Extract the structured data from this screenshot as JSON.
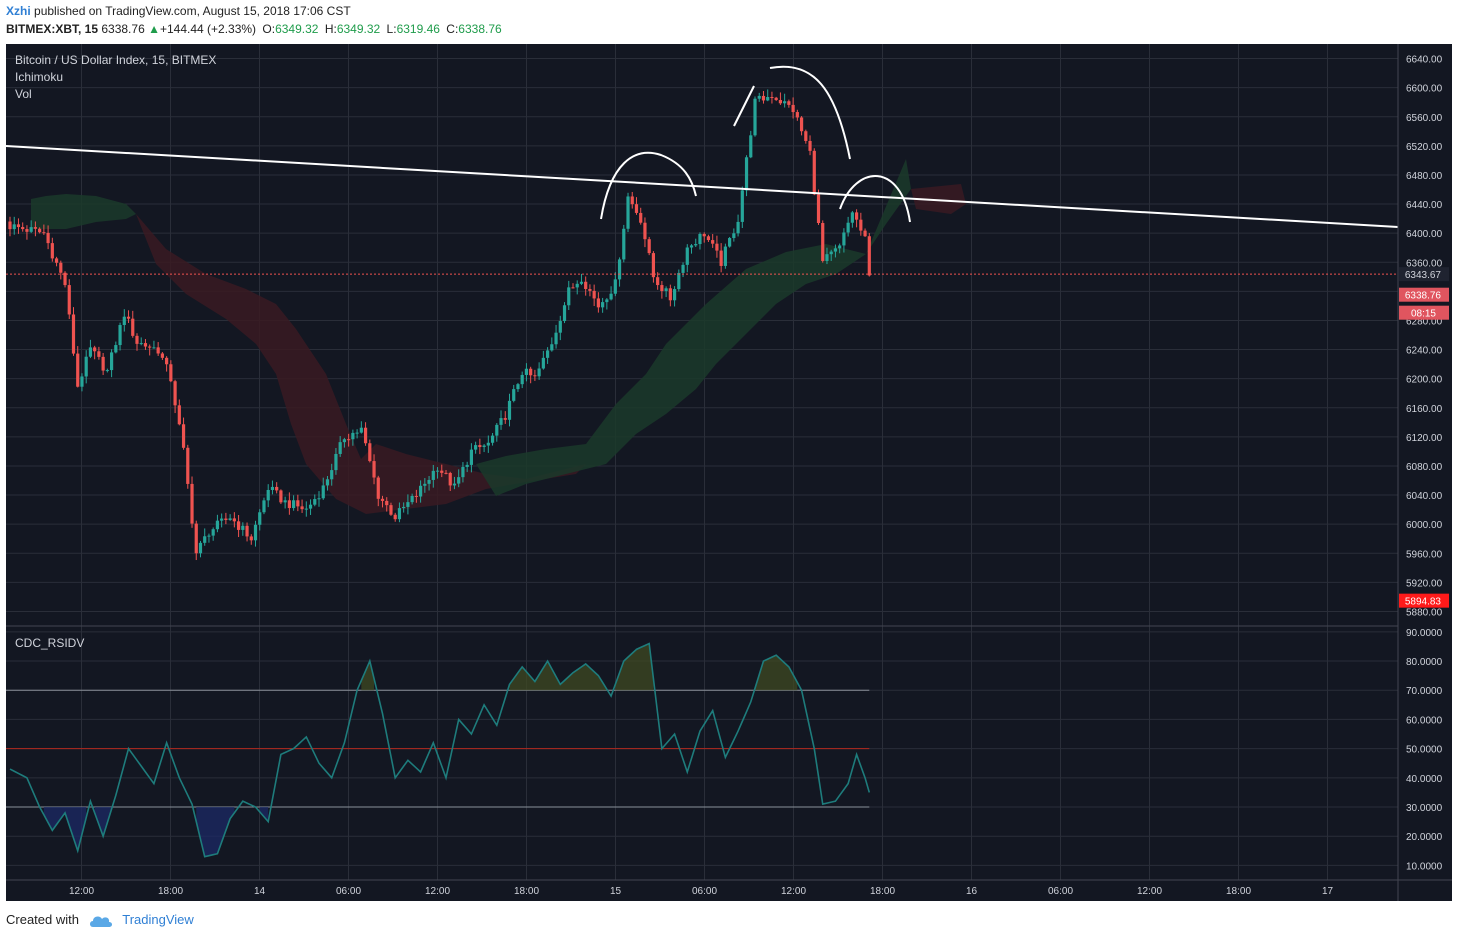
{
  "header": {
    "author": "Xzhi",
    "published_text": "published on TradingView.com, August 15, 2018 17:06 CST",
    "symbol": "BITMEX:XBT, 15",
    "last": "6338.76",
    "change": "+144.44 (+2.33%)",
    "o_label": "O:",
    "o": "6349.32",
    "h_label": "H:",
    "h": "6349.32",
    "l_label": "L:",
    "l": "6319.46",
    "c_label": "C:",
    "c": "6338.76"
  },
  "legend": {
    "title": "Bitcoin / US Dollar Index, 15, BITMEX",
    "ind1": "Ichimoku",
    "ind2": "Vol",
    "osc": "CDC_RSIDV"
  },
  "footer": {
    "created": "Created with",
    "brand": "TradingView"
  },
  "colors": {
    "background": "#131722",
    "grid": "#2a2e39",
    "up": "#26a69a",
    "down": "#ef5350",
    "trendline": "#ffffff",
    "rsi_line": "#1e7c7c",
    "mid_line": "#b2281e",
    "cloud_green": "#1b3a2a",
    "cloud_red": "#3a1a22",
    "last_price_tag": "#e0555f",
    "low_tag": "#ff1a1a"
  },
  "chart_data": [
    {
      "type": "candlestick",
      "title": "Bitcoin / US Dollar Index, 15, BITMEX",
      "ylim": [
        5860,
        6660
      ],
      "y_ticks": [
        6640,
        6600,
        6560,
        6520,
        6480,
        6440,
        6400,
        6360,
        6320,
        6280,
        6240,
        6200,
        6160,
        6120,
        6080,
        6040,
        6000,
        5960,
        5920,
        5880
      ],
      "y_tick_labels": [
        "6640.00",
        "6600.00",
        "6560.00",
        "6520.00",
        "6480.00",
        "6440.00",
        "6400.00",
        "6360.00",
        "6320.00",
        "6280.00",
        "6240.00",
        "6200.00",
        "6160.00",
        "6120.00",
        "6080.00",
        "6040.00",
        "6000.00",
        "5960.00",
        "5920.00",
        "5880.00"
      ],
      "x_tick_labels": [
        "12:00",
        "18:00",
        "14",
        "06:00",
        "12:00",
        "18:00",
        "15",
        "06:00",
        "12:00",
        "18:00",
        "16",
        "06:00",
        "12:00",
        "18:00",
        "17"
      ],
      "price_tags": [
        {
          "label": "6343.67",
          "value": 6343.67
        },
        {
          "label": "6338.76",
          "value": 6338.76
        },
        {
          "label": "08:15"
        },
        {
          "label": "5894.83",
          "value": 5894.83
        }
      ],
      "anchors": [
        [
          0,
          6410
        ],
        [
          8,
          6400
        ],
        [
          13,
          6330
        ],
        [
          16,
          6190
        ],
        [
          19,
          6240
        ],
        [
          23,
          6210
        ],
        [
          27,
          6290
        ],
        [
          30,
          6250
        ],
        [
          35,
          6240
        ],
        [
          38,
          6200
        ],
        [
          41,
          6100
        ],
        [
          44,
          5960
        ],
        [
          47,
          5990
        ],
        [
          52,
          6010
        ],
        [
          57,
          5980
        ],
        [
          61,
          6050
        ],
        [
          65,
          6030
        ],
        [
          70,
          6020
        ],
        [
          74,
          6050
        ],
        [
          79,
          6120
        ],
        [
          83,
          6130
        ],
        [
          87,
          6040
        ],
        [
          91,
          6010
        ],
        [
          96,
          6040
        ],
        [
          101,
          6080
        ],
        [
          105,
          6050
        ],
        [
          109,
          6100
        ],
        [
          113,
          6110
        ],
        [
          117,
          6150
        ],
        [
          121,
          6210
        ],
        [
          124,
          6200
        ],
        [
          128,
          6250
        ],
        [
          132,
          6320
        ],
        [
          135,
          6340
        ],
        [
          139,
          6300
        ],
        [
          143,
          6330
        ],
        [
          146,
          6450
        ],
        [
          149,
          6420
        ],
        [
          152,
          6340
        ],
        [
          156,
          6310
        ],
        [
          160,
          6380
        ],
        [
          164,
          6400
        ],
        [
          168,
          6360
        ],
        [
          172,
          6420
        ],
        [
          176,
          6580
        ],
        [
          180,
          6590
        ],
        [
          185,
          6570
        ],
        [
          189,
          6510
        ],
        [
          192,
          6360
        ],
        [
          196,
          6380
        ],
        [
          199,
          6430
        ],
        [
          202,
          6390
        ],
        [
          203,
          6338.76
        ]
      ]
    },
    {
      "type": "line",
      "title": "CDC_RSIDV",
      "ylim": [
        5,
        92
      ],
      "y_ticks": [
        90,
        80,
        70,
        60,
        50,
        40,
        30,
        20,
        10
      ],
      "y_tick_labels": [
        "90.0000",
        "80.0000",
        "70.0000",
        "60.0000",
        "50.0000",
        "40.0000",
        "30.0000",
        "20.0000",
        "10.0000"
      ],
      "levels": [
        70,
        50,
        30
      ],
      "anchors": [
        [
          0,
          43
        ],
        [
          4,
          40
        ],
        [
          7,
          30
        ],
        [
          10,
          22
        ],
        [
          13,
          28
        ],
        [
          16,
          15
        ],
        [
          19,
          32
        ],
        [
          22,
          20
        ],
        [
          25,
          34
        ],
        [
          28,
          50
        ],
        [
          31,
          44
        ],
        [
          34,
          38
        ],
        [
          37,
          52
        ],
        [
          40,
          40
        ],
        [
          43,
          31
        ],
        [
          46,
          13
        ],
        [
          49,
          14
        ],
        [
          52,
          26
        ],
        [
          55,
          32
        ],
        [
          58,
          30
        ],
        [
          61,
          25
        ],
        [
          64,
          48
        ],
        [
          67,
          50
        ],
        [
          70,
          54
        ],
        [
          73,
          45
        ],
        [
          76,
          40
        ],
        [
          79,
          52
        ],
        [
          82,
          70
        ],
        [
          85,
          80
        ],
        [
          88,
          62
        ],
        [
          91,
          40
        ],
        [
          94,
          46
        ],
        [
          97,
          42
        ],
        [
          100,
          52
        ],
        [
          103,
          40
        ],
        [
          106,
          60
        ],
        [
          109,
          55
        ],
        [
          112,
          65
        ],
        [
          115,
          58
        ],
        [
          118,
          72
        ],
        [
          121,
          78
        ],
        [
          124,
          73
        ],
        [
          127,
          80
        ],
        [
          130,
          72
        ],
        [
          133,
          76
        ],
        [
          136,
          79
        ],
        [
          139,
          75
        ],
        [
          142,
          68
        ],
        [
          145,
          80
        ],
        [
          148,
          84
        ],
        [
          151,
          86
        ],
        [
          154,
          50
        ],
        [
          157,
          55
        ],
        [
          160,
          42
        ],
        [
          163,
          56
        ],
        [
          166,
          63
        ],
        [
          169,
          47
        ],
        [
          172,
          56
        ],
        [
          175,
          66
        ],
        [
          178,
          80
        ],
        [
          181,
          82
        ],
        [
          184,
          78
        ],
        [
          187,
          70
        ],
        [
          190,
          50
        ],
        [
          192,
          31
        ],
        [
          195,
          32
        ],
        [
          198,
          38
        ],
        [
          200,
          48
        ],
        [
          202,
          40
        ],
        [
          203,
          35
        ]
      ]
    }
  ]
}
